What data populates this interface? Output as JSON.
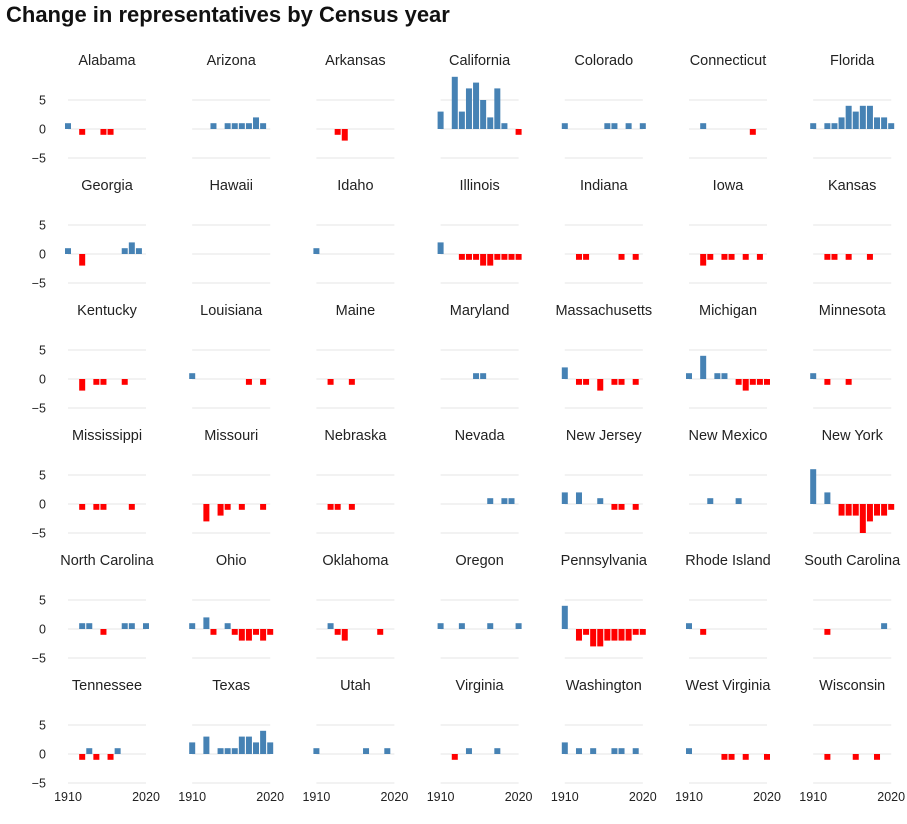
{
  "title": "Change in representatives by Census year",
  "chart_data": {
    "type": "bar",
    "title": "Change in representatives by Census year",
    "x_ticks": [
      "1910",
      "2020"
    ],
    "y_ticks": [
      "5",
      "0",
      "−5"
    ],
    "ylim": [
      -5.5,
      9
    ],
    "xlim": [
      1910,
      2020
    ],
    "grid": true,
    "colors": {
      "gain": "#4682b4",
      "loss": "#ff0000",
      "grid": "#e4e4e4"
    },
    "panels": [
      {
        "name": "Alabama",
        "bars": [
          [
            1910,
            1
          ],
          [
            1930,
            -1
          ],
          [
            1960,
            -1
          ],
          [
            1970,
            -1
          ]
        ]
      },
      {
        "name": "Arizona",
        "bars": [
          [
            1940,
            1
          ],
          [
            1960,
            1
          ],
          [
            1970,
            1
          ],
          [
            1980,
            1
          ],
          [
            1990,
            1
          ],
          [
            2000,
            2
          ],
          [
            2010,
            1
          ]
        ]
      },
      {
        "name": "Arkansas",
        "bars": [
          [
            1940,
            -1
          ],
          [
            1950,
            -2
          ]
        ]
      },
      {
        "name": "California",
        "bars": [
          [
            1910,
            3
          ],
          [
            1920,
            0
          ],
          [
            1930,
            9
          ],
          [
            1940,
            3
          ],
          [
            1950,
            7
          ],
          [
            1960,
            8
          ],
          [
            1970,
            5
          ],
          [
            1980,
            2
          ],
          [
            1990,
            7
          ],
          [
            2000,
            1
          ],
          [
            2020,
            -1
          ]
        ]
      },
      {
        "name": "Colorado",
        "bars": [
          [
            1910,
            1
          ],
          [
            1970,
            1
          ],
          [
            1980,
            1
          ],
          [
            2000,
            1
          ],
          [
            2020,
            1
          ]
        ]
      },
      {
        "name": "Connecticut",
        "bars": [
          [
            1930,
            1
          ],
          [
            2000,
            -1
          ]
        ]
      },
      {
        "name": "Florida",
        "bars": [
          [
            1910,
            1
          ],
          [
            1930,
            1
          ],
          [
            1940,
            1
          ],
          [
            1950,
            2
          ],
          [
            1960,
            4
          ],
          [
            1970,
            3
          ],
          [
            1980,
            4
          ],
          [
            1990,
            4
          ],
          [
            2000,
            2
          ],
          [
            2010,
            2
          ],
          [
            2020,
            1
          ]
        ]
      },
      {
        "name": "Georgia",
        "bars": [
          [
            1910,
            1
          ],
          [
            1930,
            -2
          ],
          [
            1990,
            1
          ],
          [
            2000,
            2
          ],
          [
            2010,
            1
          ]
        ]
      },
      {
        "name": "Hawaii",
        "bars": []
      },
      {
        "name": "Idaho",
        "bars": [
          [
            1910,
            1
          ]
        ]
      },
      {
        "name": "Illinois",
        "bars": [
          [
            1910,
            2
          ],
          [
            1940,
            -1
          ],
          [
            1950,
            -1
          ],
          [
            1960,
            -1
          ],
          [
            1970,
            -2
          ],
          [
            1980,
            -2
          ],
          [
            1990,
            -1
          ],
          [
            2000,
            -1
          ],
          [
            2010,
            -1
          ],
          [
            2020,
            -1
          ]
        ]
      },
      {
        "name": "Indiana",
        "bars": [
          [
            1930,
            -1
          ],
          [
            1940,
            -1
          ],
          [
            1990,
            -1
          ],
          [
            2010,
            -1
          ]
        ]
      },
      {
        "name": "Iowa",
        "bars": [
          [
            1930,
            -2
          ],
          [
            1940,
            -1
          ],
          [
            1960,
            -1
          ],
          [
            1970,
            -1
          ],
          [
            1990,
            -1
          ],
          [
            2010,
            -1
          ]
        ]
      },
      {
        "name": "Kansas",
        "bars": [
          [
            1930,
            -1
          ],
          [
            1940,
            -1
          ],
          [
            1960,
            -1
          ],
          [
            1990,
            -1
          ]
        ]
      },
      {
        "name": "Kentucky",
        "bars": [
          [
            1930,
            -2
          ],
          [
            1950,
            -1
          ],
          [
            1960,
            -1
          ],
          [
            1990,
            -1
          ]
        ]
      },
      {
        "name": "Louisiana",
        "bars": [
          [
            1910,
            1
          ],
          [
            1990,
            -1
          ],
          [
            2010,
            -1
          ]
        ]
      },
      {
        "name": "Maine",
        "bars": [
          [
            1930,
            -1
          ],
          [
            1960,
            -1
          ]
        ]
      },
      {
        "name": "Maryland",
        "bars": [
          [
            1960,
            1
          ],
          [
            1970,
            1
          ]
        ]
      },
      {
        "name": "Massachusetts",
        "bars": [
          [
            1910,
            2
          ],
          [
            1930,
            -1
          ],
          [
            1940,
            -1
          ],
          [
            1960,
            -2
          ],
          [
            1980,
            -1
          ],
          [
            1990,
            -1
          ],
          [
            2010,
            -1
          ]
        ]
      },
      {
        "name": "Michigan",
        "bars": [
          [
            1910,
            1
          ],
          [
            1930,
            4
          ],
          [
            1950,
            1
          ],
          [
            1960,
            1
          ],
          [
            1980,
            -1
          ],
          [
            1990,
            -2
          ],
          [
            2000,
            -1
          ],
          [
            2010,
            -1
          ],
          [
            2020,
            -1
          ]
        ]
      },
      {
        "name": "Minnesota",
        "bars": [
          [
            1910,
            1
          ],
          [
            1930,
            -1
          ],
          [
            1960,
            -1
          ]
        ]
      },
      {
        "name": "Mississippi",
        "bars": [
          [
            1930,
            -1
          ],
          [
            1950,
            -1
          ],
          [
            1960,
            -1
          ],
          [
            2000,
            -1
          ]
        ]
      },
      {
        "name": "Missouri",
        "bars": [
          [
            1930,
            -3
          ],
          [
            1950,
            -2
          ],
          [
            1960,
            -1
          ],
          [
            1980,
            -1
          ],
          [
            2010,
            -1
          ]
        ]
      },
      {
        "name": "Nebraska",
        "bars": [
          [
            1930,
            -1
          ],
          [
            1940,
            -1
          ],
          [
            1960,
            -1
          ]
        ]
      },
      {
        "name": "Nevada",
        "bars": [
          [
            1980,
            1
          ],
          [
            2000,
            1
          ],
          [
            2010,
            1
          ]
        ]
      },
      {
        "name": "New Jersey",
        "bars": [
          [
            1910,
            2
          ],
          [
            1930,
            2
          ],
          [
            1960,
            1
          ],
          [
            1980,
            -1
          ],
          [
            1990,
            -1
          ],
          [
            2010,
            -1
          ]
        ]
      },
      {
        "name": "New Mexico",
        "bars": [
          [
            1940,
            1
          ],
          [
            1980,
            1
          ]
        ]
      },
      {
        "name": "New York",
        "bars": [
          [
            1910,
            6
          ],
          [
            1930,
            2
          ],
          [
            1950,
            -2
          ],
          [
            1960,
            -2
          ],
          [
            1970,
            -2
          ],
          [
            1980,
            -5
          ],
          [
            1990,
            -3
          ],
          [
            2000,
            -2
          ],
          [
            2010,
            -2
          ],
          [
            2020,
            -1
          ]
        ]
      },
      {
        "name": "North Carolina",
        "bars": [
          [
            1930,
            1
          ],
          [
            1940,
            1
          ],
          [
            1960,
            -1
          ],
          [
            1990,
            1
          ],
          [
            2000,
            1
          ],
          [
            2020,
            1
          ]
        ]
      },
      {
        "name": "Ohio",
        "bars": [
          [
            1910,
            1
          ],
          [
            1930,
            2
          ],
          [
            1940,
            -1
          ],
          [
            1960,
            1
          ],
          [
            1970,
            -1
          ],
          [
            1980,
            -2
          ],
          [
            1990,
            -2
          ],
          [
            2000,
            -1
          ],
          [
            2010,
            -2
          ],
          [
            2020,
            -1
          ]
        ]
      },
      {
        "name": "Oklahoma",
        "bars": [
          [
            1930,
            1
          ],
          [
            1940,
            -1
          ],
          [
            1950,
            -2
          ],
          [
            2000,
            -1
          ]
        ]
      },
      {
        "name": "Oregon",
        "bars": [
          [
            1910,
            1
          ],
          [
            1940,
            1
          ],
          [
            1980,
            1
          ],
          [
            2020,
            1
          ]
        ]
      },
      {
        "name": "Pennsylvania",
        "bars": [
          [
            1910,
            4
          ],
          [
            1930,
            -2
          ],
          [
            1940,
            -1
          ],
          [
            1950,
            -3
          ],
          [
            1960,
            -3
          ],
          [
            1970,
            -2
          ],
          [
            1980,
            -2
          ],
          [
            1990,
            -2
          ],
          [
            2000,
            -2
          ],
          [
            2010,
            -1
          ],
          [
            2020,
            -1
          ]
        ]
      },
      {
        "name": "Rhode Island",
        "bars": [
          [
            1910,
            1
          ],
          [
            1930,
            -1
          ]
        ]
      },
      {
        "name": "South Carolina",
        "bars": [
          [
            1930,
            -1
          ],
          [
            2010,
            1
          ]
        ]
      },
      {
        "name": "Tennessee",
        "bars": [
          [
            1930,
            -1
          ],
          [
            1940,
            1
          ],
          [
            1950,
            -1
          ],
          [
            1970,
            -1
          ],
          [
            1980,
            1
          ]
        ]
      },
      {
        "name": "Texas",
        "bars": [
          [
            1910,
            2
          ],
          [
            1930,
            3
          ],
          [
            1950,
            1
          ],
          [
            1960,
            1
          ],
          [
            1970,
            1
          ],
          [
            1980,
            3
          ],
          [
            1990,
            3
          ],
          [
            2000,
            2
          ],
          [
            2010,
            4
          ],
          [
            2020,
            2
          ]
        ]
      },
      {
        "name": "Utah",
        "bars": [
          [
            1910,
            1
          ],
          [
            1980,
            1
          ],
          [
            2010,
            1
          ]
        ]
      },
      {
        "name": "Virginia",
        "bars": [
          [
            1930,
            -1
          ],
          [
            1950,
            1
          ],
          [
            1990,
            1
          ]
        ]
      },
      {
        "name": "Washington",
        "bars": [
          [
            1910,
            2
          ],
          [
            1930,
            1
          ],
          [
            1950,
            1
          ],
          [
            1980,
            1
          ],
          [
            1990,
            1
          ],
          [
            2010,
            1
          ]
        ]
      },
      {
        "name": "West Virginia",
        "bars": [
          [
            1910,
            1
          ],
          [
            1960,
            -1
          ],
          [
            1970,
            -1
          ],
          [
            1990,
            -1
          ],
          [
            2020,
            -1
          ]
        ]
      },
      {
        "name": "Wisconsin",
        "bars": [
          [
            1930,
            -1
          ],
          [
            1970,
            -1
          ],
          [
            2000,
            -1
          ]
        ]
      }
    ]
  }
}
